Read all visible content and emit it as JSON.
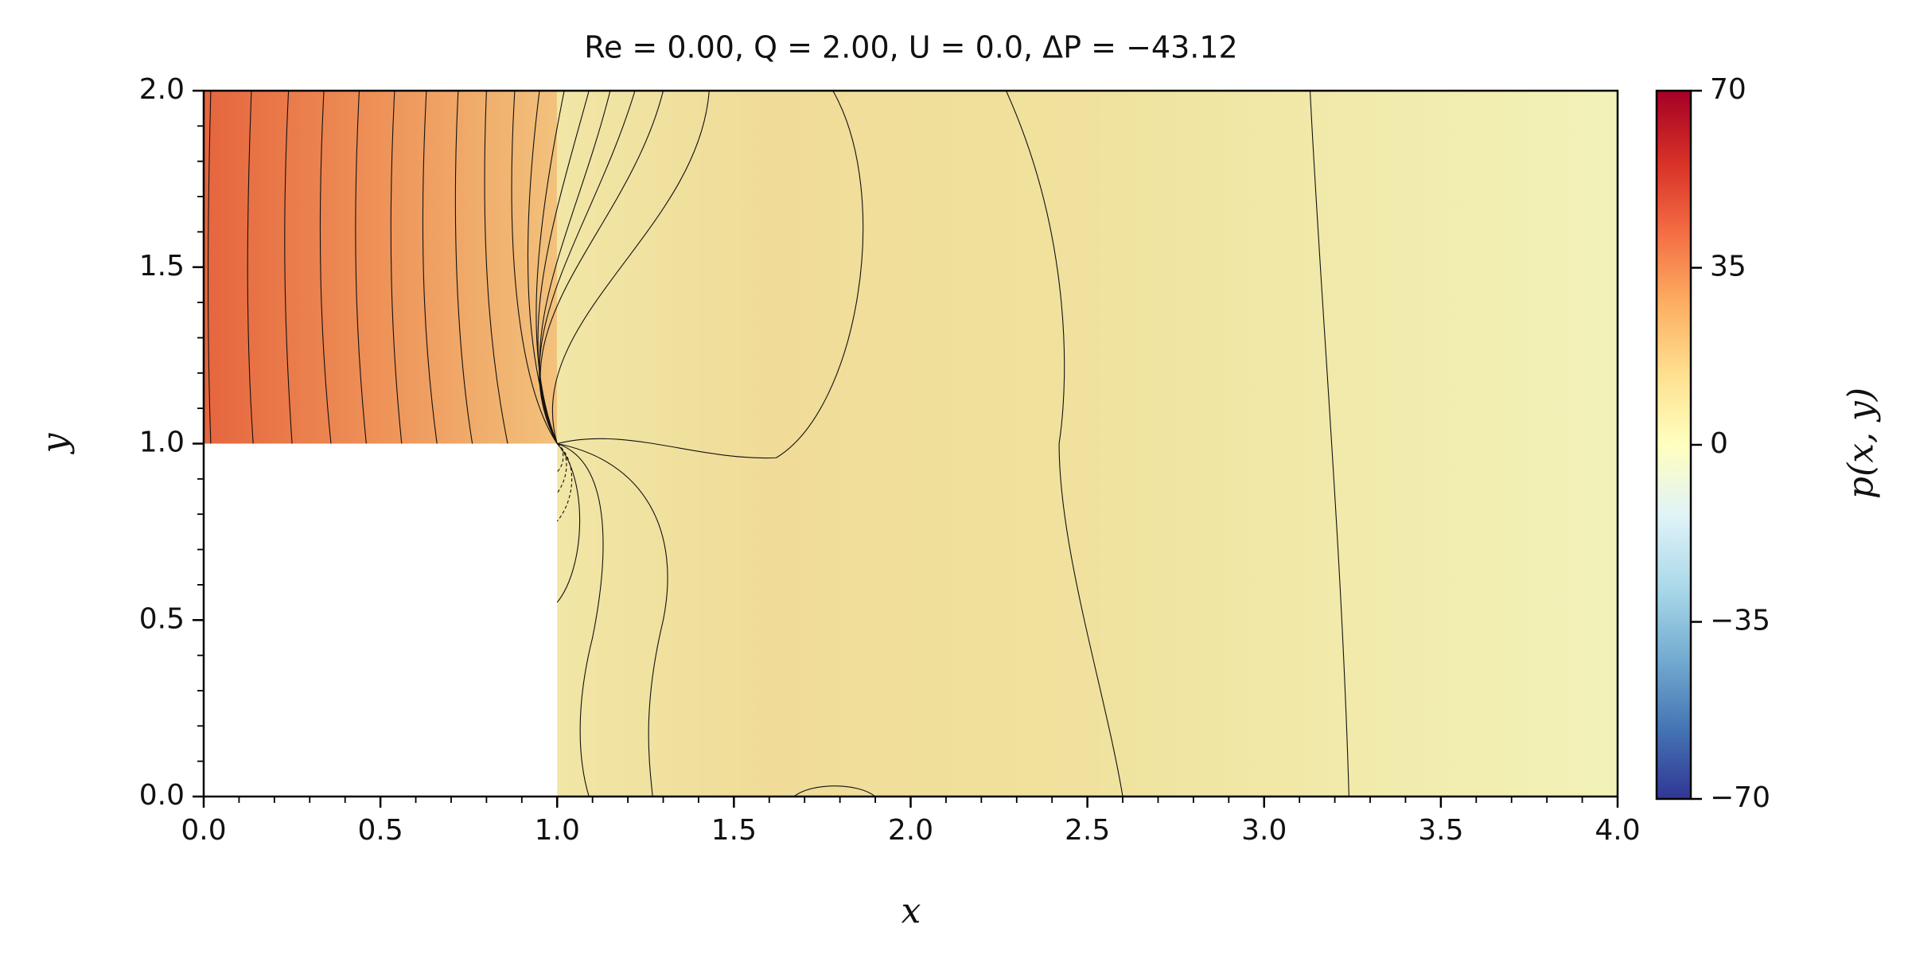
{
  "chart_data": {
    "type": "contour",
    "title": "Re = 0.00, Q = 2.00, U = 0.0, ΔP = −43.12",
    "x_label": "x",
    "y_label": "y",
    "colorbar_label": "p(x, y)",
    "xlim": [
      0,
      4
    ],
    "ylim": [
      0,
      2
    ],
    "xticks": [
      {
        "value": 0,
        "label": "0.0"
      },
      {
        "value": 0.5,
        "label": "0.5"
      },
      {
        "value": 1,
        "label": "1.0"
      },
      {
        "value": 1.5,
        "label": "1.5"
      },
      {
        "value": 2,
        "label": "2.0"
      },
      {
        "value": 2.5,
        "label": "2.5"
      },
      {
        "value": 3,
        "label": "3.0"
      },
      {
        "value": 3.5,
        "label": "3.5"
      },
      {
        "value": 4,
        "label": "4.0"
      }
    ],
    "yticks": [
      {
        "value": 0,
        "label": "0.0"
      },
      {
        "value": 0.5,
        "label": "0.5"
      },
      {
        "value": 1,
        "label": "1.0"
      },
      {
        "value": 1.5,
        "label": "1.5"
      },
      {
        "value": 2,
        "label": "2.0"
      }
    ],
    "clim": [
      -70,
      70
    ],
    "cticks": [
      {
        "value": -70,
        "label": "−70"
      },
      {
        "value": -35,
        "label": "−35"
      },
      0,
      35,
      70
    ]
  }
}
